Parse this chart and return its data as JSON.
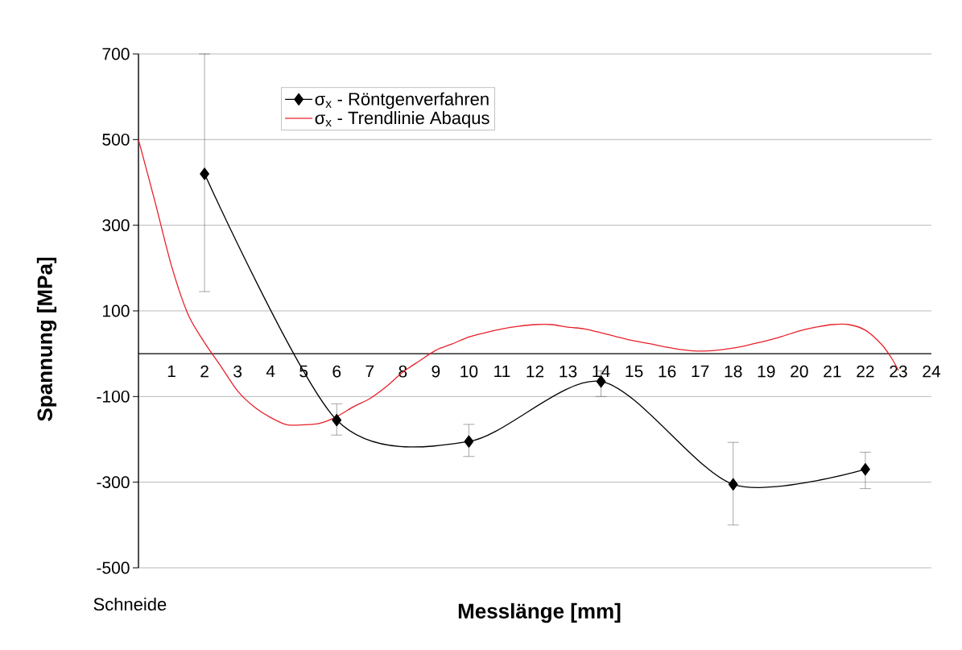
{
  "chart_data": {
    "type": "line",
    "xlabel": "Messlänge [mm]",
    "ylabel": "Spannung [MPa]",
    "annotations": [
      "Schneide"
    ],
    "xlim": [
      0,
      24
    ],
    "xticks": [
      1,
      2,
      3,
      4,
      5,
      6,
      7,
      8,
      9,
      10,
      11,
      12,
      13,
      14,
      15,
      16,
      17,
      18,
      19,
      20,
      21,
      22,
      23,
      24
    ],
    "ylim": [
      -500,
      700
    ],
    "yticks": [
      -500,
      -300,
      -100,
      100,
      300,
      500,
      700
    ],
    "grid": "y",
    "legend": "top",
    "series": [
      {
        "name": "σ$_{x}$ - Röntgenverfahren",
        "color": "#000000",
        "marker": "diamond",
        "x": [
          2,
          6,
          10,
          14,
          18,
          22
        ],
        "values": [
          420,
          -155,
          -205,
          -65,
          -305,
          -270
        ],
        "errors": [
          [
            145,
            700
          ],
          [
            -190,
            -117
          ],
          [
            -240,
            -165
          ],
          [
            -100,
            -40
          ],
          [
            -400,
            -207
          ],
          [
            -315,
            -230
          ]
        ]
      },
      {
        "name": "σ$_{x}$ - Trendlinie Abaqus",
        "color": "#e8202a",
        "marker": "none",
        "x": [
          0,
          0.5,
          1,
          1.5,
          2,
          2.5,
          3,
          3.5,
          4,
          4.5,
          5,
          5.5,
          6,
          6.5,
          7,
          7.5,
          8,
          8.5,
          9,
          9.5,
          10,
          10.5,
          11,
          11.5,
          12,
          12.5,
          13,
          13.5,
          14,
          14.5,
          15,
          15.5,
          16,
          16.5,
          17,
          17.5,
          18,
          18.5,
          19,
          19.5,
          20,
          20.5,
          21,
          21.5,
          22,
          22.5,
          22.8,
          23
        ],
        "values": [
          500,
          355,
          205,
          92,
          26,
          -30,
          -87,
          -124,
          -149,
          -166,
          -166,
          -162,
          -147,
          -124,
          -105,
          -77,
          -43,
          -17,
          8,
          23,
          39,
          49,
          58,
          64,
          68,
          68,
          62,
          58,
          49,
          39,
          30,
          23,
          15,
          9,
          6,
          8,
          13,
          21,
          30,
          41,
          53,
          62,
          68,
          68,
          55,
          21,
          -11,
          -39
        ]
      }
    ]
  }
}
